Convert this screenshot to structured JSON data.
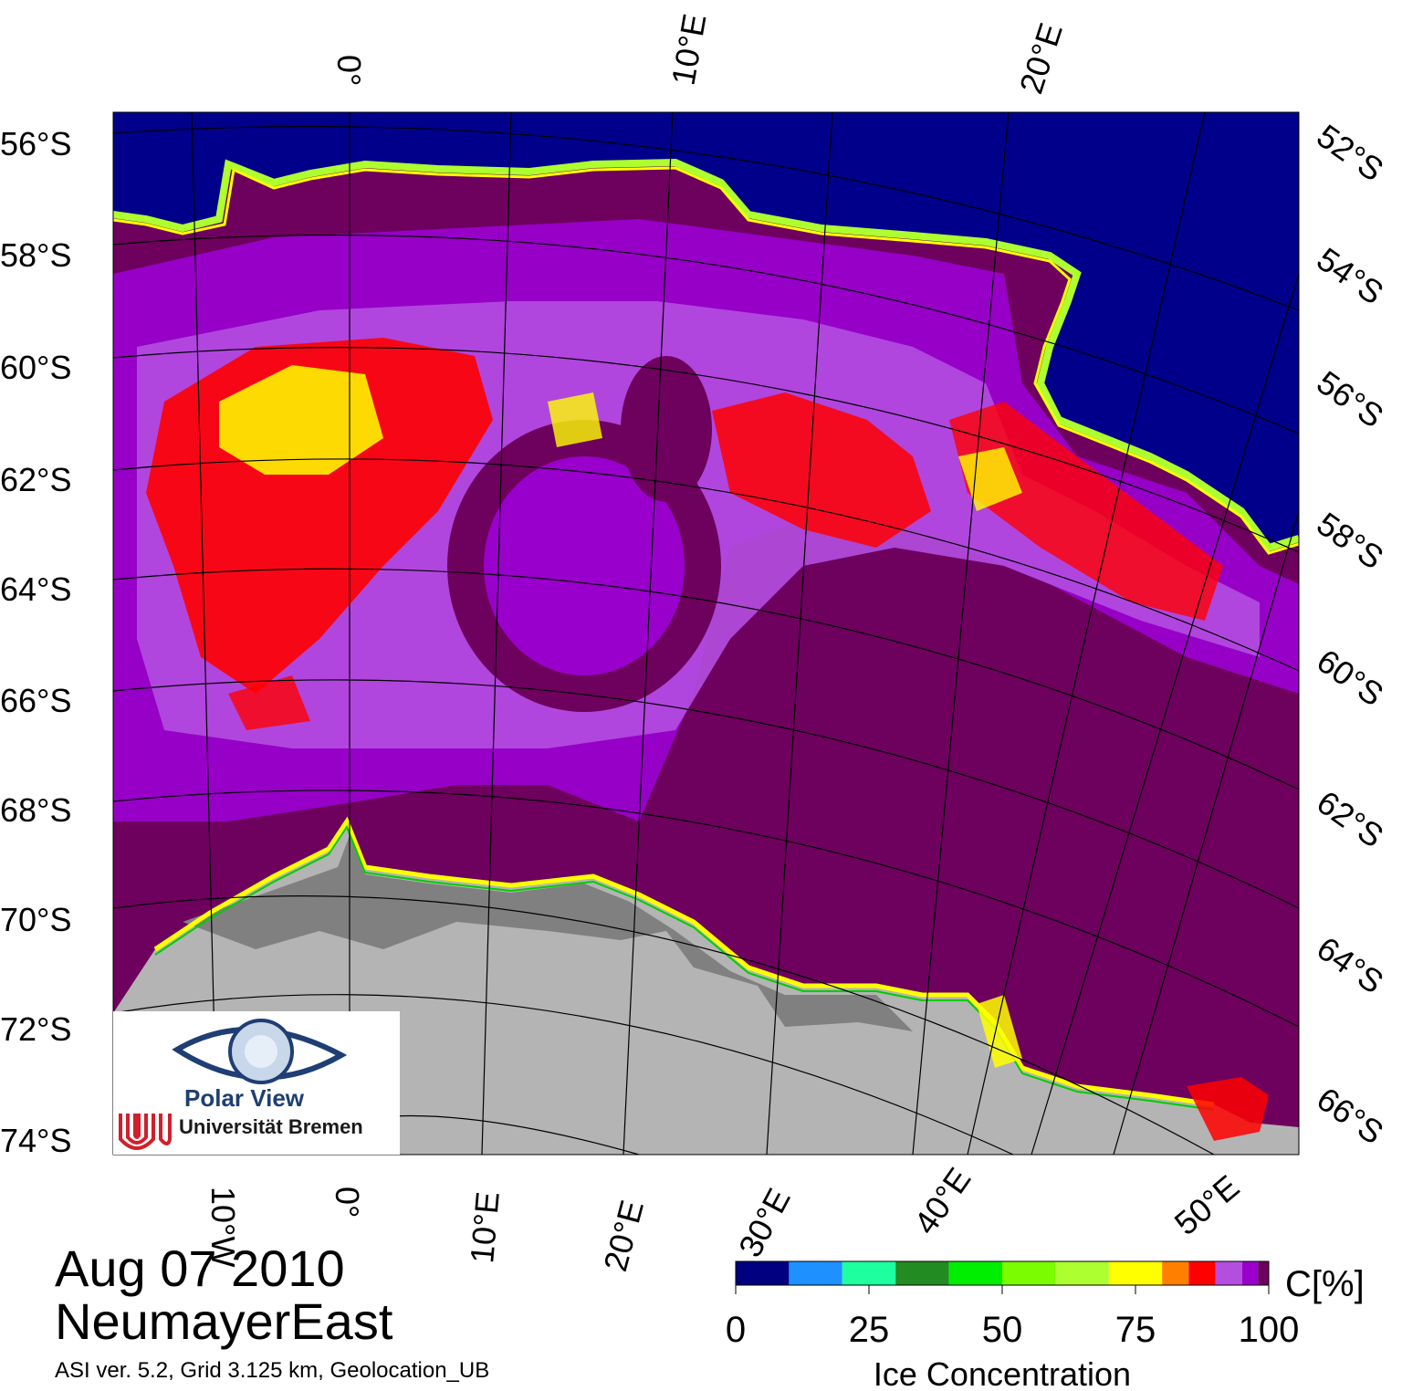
{
  "map": {
    "lat_labels_left": [
      "56°S",
      "58°S",
      "60°S",
      "62°S",
      "64°S",
      "66°S",
      "68°S",
      "70°S",
      "72°S",
      "74°S"
    ],
    "lat_labels_right": [
      "52°S",
      "54°S",
      "56°S",
      "58°S",
      "60°S",
      "62°S",
      "64°S",
      "66°S"
    ],
    "lon_labels_top": [
      "0°",
      "10°E",
      "20°E"
    ],
    "lon_labels_bottom": [
      "10°W",
      "0°",
      "10°E",
      "20°E",
      "30°E",
      "40°E",
      "50°E"
    ],
    "colors": {
      "open_water": "#00008b",
      "high_ice": "#6e005e",
      "land_ice": "#b4b4b4",
      "shelf_ice": "#808080",
      "purple": "#9900cc",
      "lavender": "#b34ee0",
      "red": "#ff0000",
      "yellow": "#ffff00",
      "green": "#00ff00"
    }
  },
  "legend": {
    "ticks": [
      "0",
      "25",
      "50",
      "75",
      "100"
    ],
    "unit_label": "C[%]",
    "title": "Ice Concentration",
    "colors": [
      "#000080",
      "#1e90ff",
      "#1effa0",
      "#228b22",
      "#00ee00",
      "#7cfc00",
      "#adff2f",
      "#ffff00",
      "#ff8000",
      "#ff0000",
      "#b34ee0",
      "#9900cc",
      "#6e005e"
    ]
  },
  "caption": {
    "date": "Aug 07 2010",
    "region": "NeumayerEast",
    "info": "ASI ver. 5.2,  Grid 3.125 km, Geolocation_UB"
  },
  "logo": {
    "title": "Polar View",
    "subtitle": "Universität Bremen"
  }
}
